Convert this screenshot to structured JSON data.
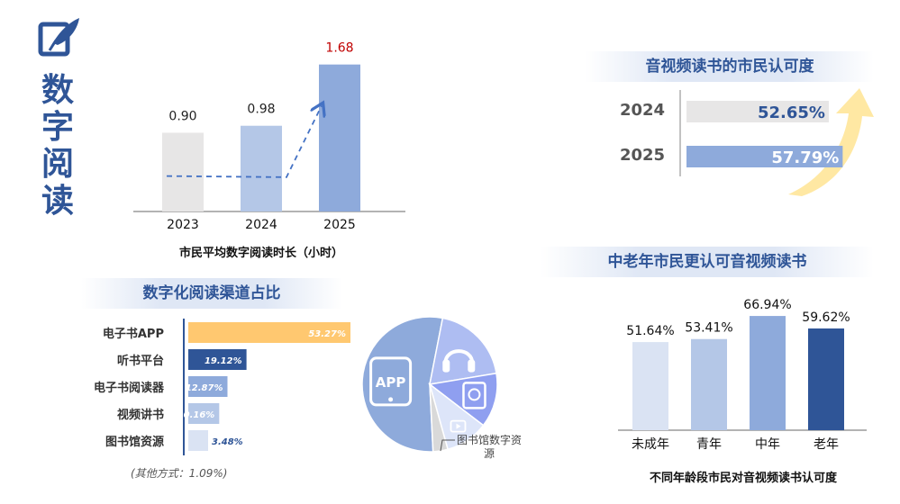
{
  "page": {
    "title": "数字阅读",
    "colors": {
      "accent": "#2f5597",
      "light_blue": "#8eaadb",
      "pale_blue": "#b4c7e7",
      "gray": "#e7e6e6",
      "gold": "#ffc870"
    }
  },
  "charts": {
    "duration": {
      "caption": "市民平均数字阅读时长（小时）",
      "chart_data": {
        "type": "bar",
        "title": "市民平均数字阅读时长（小时）",
        "categories": [
          "2023",
          "2024",
          "2025"
        ],
        "values": [
          0.9,
          0.98,
          1.68
        ],
        "value_labels": [
          "0.90",
          "0.98",
          "1.68"
        ],
        "colors": [
          "#e7e6e6",
          "#b4c7e7",
          "#8eaadb"
        ],
        "value_label_colors": [
          "#222222",
          "#222222",
          "#c00000"
        ],
        "ylim": [
          0,
          1.8
        ],
        "trend_arrow": true,
        "grid": false
      }
    },
    "recognition": {
      "heading": "音视频读书的市民认可度",
      "chart_data": {
        "type": "bar",
        "orientation": "horizontal",
        "categories": [
          "2024",
          "2025"
        ],
        "values": [
          52.65,
          57.79
        ],
        "value_labels": [
          "52.65%",
          "57.79%"
        ],
        "colors": [
          "#e7e6e6",
          "#8eaadb"
        ],
        "value_label_colors": [
          "#2f5597",
          "#ffffff"
        ],
        "xlim": [
          0,
          100
        ],
        "decor_arrow_color": "#ffe699"
      }
    },
    "channels": {
      "heading": "数字化阅读渠道占比",
      "footnote": "(其他方式：1.09%)",
      "chart_data": {
        "type": "bar",
        "orientation": "horizontal",
        "categories": [
          "电子书APP",
          "听书平台",
          "电子书阅读器",
          "视频讲书",
          "图书馆资源"
        ],
        "values": [
          53.27,
          19.12,
          12.87,
          10.16,
          3.48
        ],
        "value_labels": [
          "53.27%",
          "19.12%",
          "12.87%",
          "10.16%",
          "3.48%"
        ],
        "colors": [
          "#ffc870",
          "#2f5597",
          "#8eaadb",
          "#b4c7e7",
          "#dae3f3"
        ],
        "value_label_colors": [
          "#ffffff",
          "#ffffff",
          "#ffffff",
          "#ffffff",
          "#2f5597"
        ],
        "xlim": [
          0,
          53.27
        ]
      }
    },
    "pie": {
      "chart_data": {
        "type": "pie",
        "labels": [
          "APP",
          "听书平台",
          "电子书阅读器",
          "视频讲书",
          "图书馆数字资源"
        ],
        "values": [
          53.27,
          19.12,
          12.87,
          10.16,
          3.48
        ],
        "colors": [
          "#8eaadb",
          "#aebdf2",
          "#8f9ff0",
          "#dde5f9",
          "#d9d9d9"
        ],
        "callout": "图书馆数字资源",
        "slice_texts": [
          "APP"
        ],
        "icons": [
          "tablet-icon",
          "headphones-icon",
          "ereader-icon",
          "video-icon"
        ]
      }
    },
    "age": {
      "heading": "中老年市民更认可音视频读书",
      "caption": "不同年龄段市民对音视频读书认可度",
      "chart_data": {
        "type": "bar",
        "title": "不同年龄段市民对音视频读书认可度",
        "categories": [
          "未成年",
          "青年",
          "中年",
          "老年"
        ],
        "values": [
          51.64,
          53.41,
          66.94,
          59.62
        ],
        "value_labels": [
          "51.64%",
          "53.41%",
          "66.94%",
          "59.62%"
        ],
        "colors": [
          "#dae3f3",
          "#b4c7e7",
          "#8eaadb",
          "#2f5597"
        ],
        "ylim": [
          0,
          70
        ],
        "grid": false
      }
    }
  }
}
